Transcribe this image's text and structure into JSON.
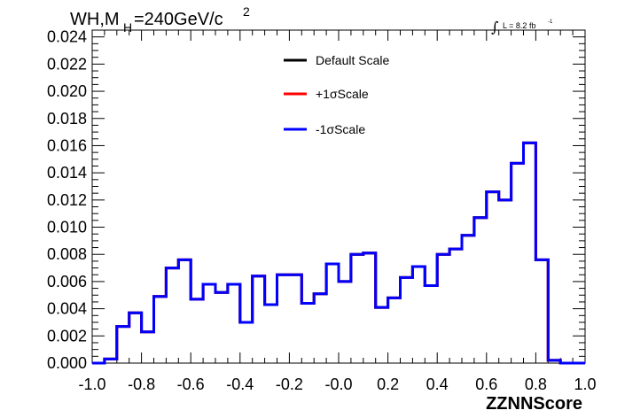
{
  "title": {
    "prefix": "WH,M",
    "subscript": "H",
    "suffix": "=240GeV/c",
    "superscript": "2"
  },
  "luminosity": {
    "integral_symbol": "∫",
    "text": "L = 8.2 fb",
    "exponent": "-1"
  },
  "colors": {
    "default": "#000000",
    "plus": "#ff0000",
    "minus": "#0000ff",
    "frame": "#000000"
  },
  "chart_data": {
    "type": "line",
    "style": "step-histogram",
    "xlabel": "ZZNNScore",
    "ylabel": "",
    "xlim": [
      -1.0,
      1.0
    ],
    "ylim": [
      0.0,
      0.0245
    ],
    "x_ticks": [
      "-1.0",
      "-0.8",
      "-0.6",
      "-0.4",
      "-0.2",
      "-0.0",
      "0.2",
      "0.4",
      "0.6",
      "0.8",
      "1.0"
    ],
    "x_tick_values": [
      -1.0,
      -0.8,
      -0.6,
      -0.4,
      -0.2,
      0.0,
      0.2,
      0.4,
      0.6,
      0.8,
      1.0
    ],
    "y_ticks": [
      "0.000",
      "0.002",
      "0.004",
      "0.006",
      "0.008",
      "0.010",
      "0.012",
      "0.014",
      "0.016",
      "0.018",
      "0.020",
      "0.022",
      "0.024"
    ],
    "y_tick_values": [
      0.0,
      0.002,
      0.004,
      0.006,
      0.008,
      0.01,
      0.012,
      0.014,
      0.016,
      0.018,
      0.02,
      0.022,
      0.024
    ],
    "bin_edges": [
      -1.0,
      -0.95,
      -0.9,
      -0.85,
      -0.8,
      -0.75,
      -0.7,
      -0.65,
      -0.6,
      -0.55,
      -0.5,
      -0.45,
      -0.4,
      -0.35,
      -0.3,
      -0.25,
      -0.2,
      -0.15,
      -0.1,
      -0.05,
      0.0,
      0.05,
      0.1,
      0.15,
      0.2,
      0.25,
      0.3,
      0.35,
      0.4,
      0.45,
      0.5,
      0.55,
      0.6,
      0.65,
      0.7,
      0.75,
      0.8,
      0.85,
      0.9,
      0.95,
      1.0
    ],
    "legend_position": "top-center",
    "series": [
      {
        "name": "Default Scale",
        "color": "#000000",
        "values": [
          0.0,
          0.0003,
          0.0027,
          0.0037,
          0.0023,
          0.0049,
          0.007,
          0.0076,
          0.0047,
          0.0058,
          0.0052,
          0.0058,
          0.003,
          0.0064,
          0.0043,
          0.0065,
          0.0065,
          0.0044,
          0.0051,
          0.0073,
          0.006,
          0.008,
          0.0081,
          0.0041,
          0.0048,
          0.0063,
          0.0071,
          0.0057,
          0.008,
          0.0084,
          0.0094,
          0.0107,
          0.0126,
          0.012,
          0.0147,
          0.0162,
          0.0076,
          0.0002,
          0.0,
          0.0
        ]
      },
      {
        "name": "+1σScale",
        "color": "#ff0000",
        "values": [
          0.0,
          0.0003,
          0.0027,
          0.0037,
          0.0023,
          0.0049,
          0.007,
          0.0076,
          0.0047,
          0.0058,
          0.0052,
          0.0058,
          0.003,
          0.0064,
          0.0043,
          0.0065,
          0.0065,
          0.0044,
          0.0051,
          0.0073,
          0.006,
          0.008,
          0.0081,
          0.0041,
          0.0048,
          0.0063,
          0.0071,
          0.0057,
          0.008,
          0.0084,
          0.0094,
          0.0107,
          0.0126,
          0.012,
          0.0147,
          0.0162,
          0.0076,
          0.0002,
          0.0,
          0.0
        ]
      },
      {
        "name": "-1σScale",
        "color": "#0000ff",
        "values": [
          0.0,
          0.0003,
          0.0027,
          0.0037,
          0.0023,
          0.0049,
          0.007,
          0.0076,
          0.0047,
          0.0058,
          0.0052,
          0.0058,
          0.003,
          0.0064,
          0.0043,
          0.0065,
          0.0065,
          0.0044,
          0.0051,
          0.0073,
          0.006,
          0.008,
          0.0081,
          0.0041,
          0.0048,
          0.0063,
          0.0071,
          0.0057,
          0.008,
          0.0084,
          0.0094,
          0.0107,
          0.0126,
          0.012,
          0.0147,
          0.0162,
          0.0076,
          0.0002,
          0.0,
          0.0
        ]
      }
    ]
  }
}
